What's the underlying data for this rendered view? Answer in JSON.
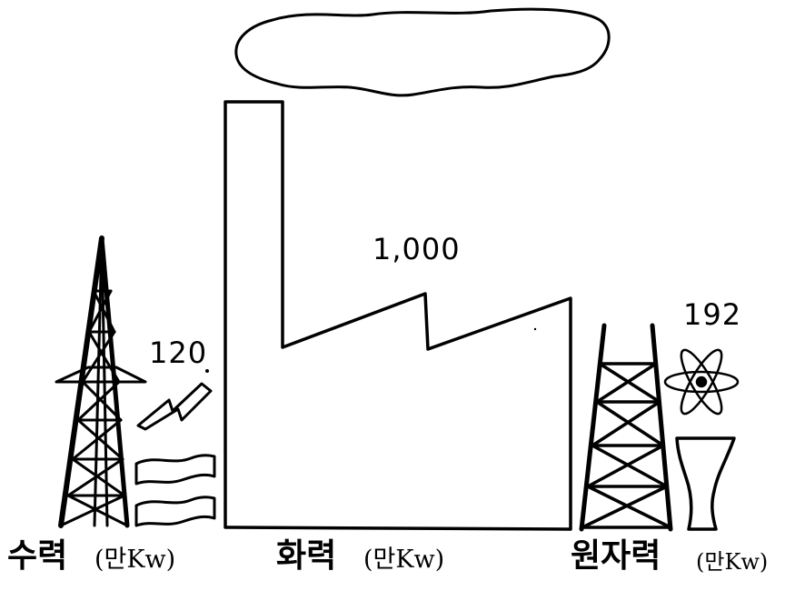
{
  "hydro": {
    "value": "120",
    "label": "수력",
    "unit": "(만Kw)"
  },
  "thermal": {
    "value": "1,000",
    "label": "화력",
    "unit": "(만Kw)"
  },
  "nuclear": {
    "value": "192",
    "label": "원자력",
    "unit": "(만Kw)"
  },
  "icons": [
    "cloud-icon",
    "factory-icon",
    "transmission-tower-icon",
    "lightning-bolt-icon",
    "water-waves-icon",
    "atom-icon",
    "cooling-tower-icon"
  ]
}
